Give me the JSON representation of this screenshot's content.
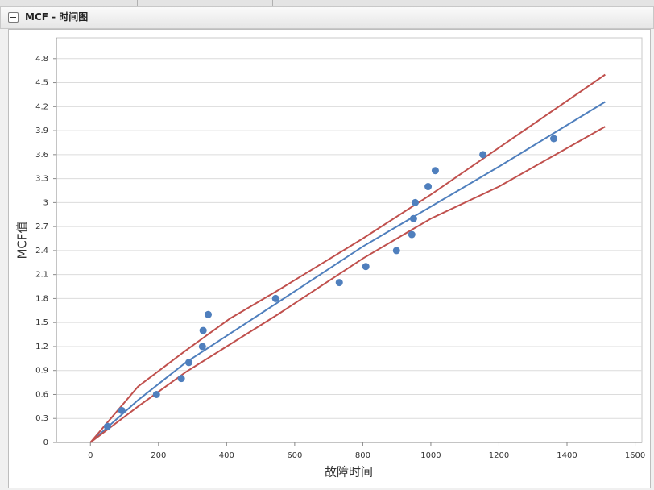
{
  "chart_data": {
    "type": "scatter",
    "title": "MCF - 时间图",
    "x_label": "故障时间",
    "y_label": "MCF值",
    "xlim": [
      -100,
      1620
    ],
    "ylim": [
      0,
      5.06
    ],
    "xticks": [
      0,
      200,
      400,
      600,
      800,
      1000,
      1200,
      1400,
      1600
    ],
    "yticks": [
      0,
      0.3,
      0.6,
      0.9,
      1.2,
      1.5,
      1.8,
      2.1,
      2.4,
      2.7,
      3,
      3.3,
      3.6,
      3.9,
      4.2,
      4.5,
      4.8
    ],
    "grid": true,
    "series": [
      {
        "mode": "markers",
        "color": "#4f7fbd",
        "x": [
          50,
          92,
          194,
          267,
          289,
          329,
          331,
          346,
          544,
          731,
          809,
          899,
          944,
          949,
          954,
          992,
          1013,
          1153,
          1361
        ],
        "values": [
          0.2,
          0.4,
          0.6,
          0.8,
          1.0,
          1.2,
          1.4,
          1.6,
          1.8,
          2.0,
          2.2,
          2.4,
          2.6,
          2.8,
          3.0,
          3.2,
          3.4,
          3.6,
          3.8
        ]
      },
      {
        "mode": "line",
        "color": "#4f7fbd",
        "x": [
          0,
          140,
          280,
          550,
          800,
          1000,
          1200,
          1512
        ],
        "values": [
          0,
          0.53,
          1.0,
          1.75,
          2.45,
          2.95,
          3.45,
          4.26
        ]
      },
      {
        "mode": "line",
        "color": "#c0504d",
        "x": [
          0,
          140,
          280,
          410,
          550,
          800,
          1000,
          1512
        ],
        "values": [
          0,
          0.7,
          1.15,
          1.55,
          1.9,
          2.55,
          3.1,
          4.6
        ]
      },
      {
        "mode": "line",
        "color": "#c0504d",
        "x": [
          0,
          140,
          280,
          550,
          800,
          1000,
          1200,
          1512
        ],
        "values": [
          0,
          0.45,
          0.88,
          1.6,
          2.3,
          2.8,
          3.2,
          3.95
        ]
      }
    ]
  }
}
